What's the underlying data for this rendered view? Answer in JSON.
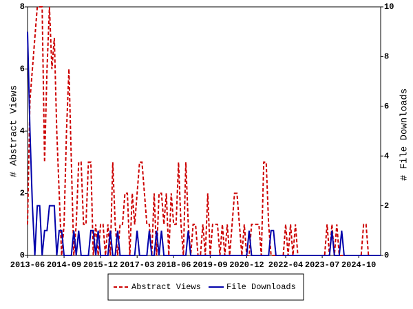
{
  "chart_data": {
    "type": "line",
    "categories": [
      "2013-06",
      null,
      null,
      null,
      null,
      null,
      null,
      null,
      null,
      null,
      null,
      null,
      null,
      null,
      null,
      "2014-09",
      null,
      null,
      null,
      null,
      null,
      null,
      null,
      null,
      null,
      null,
      null,
      null,
      null,
      null,
      "2015-12",
      null,
      null,
      null,
      null,
      null,
      null,
      null,
      null,
      null,
      null,
      null,
      null,
      null,
      null,
      "2017-03",
      null,
      null,
      null,
      null,
      null,
      null,
      null,
      null,
      null,
      null,
      null,
      null,
      null,
      null,
      "2018-06",
      null,
      null,
      null,
      null,
      null,
      null,
      null,
      null,
      null,
      null,
      null,
      null,
      null,
      null,
      "2019-09",
      null,
      null,
      null,
      null,
      null,
      null,
      null,
      null,
      null,
      null,
      null,
      null,
      null,
      null,
      "2020-12",
      null,
      null,
      null,
      null,
      null,
      null,
      null,
      null,
      null,
      null,
      null,
      null,
      null,
      null,
      null,
      "2022-04",
      null,
      null,
      null,
      null,
      null,
      null,
      null,
      null,
      null,
      null,
      null,
      null,
      null,
      null,
      "2023-07",
      null,
      null,
      null,
      null,
      null,
      null,
      null,
      null,
      null,
      null,
      null,
      null,
      null,
      null,
      "2024-10",
      null,
      null,
      null,
      null,
      null,
      null,
      null,
      null,
      null
    ],
    "series": [
      {
        "name": "Abstract Views",
        "color": "#cc0000",
        "dash": true,
        "axis": "y",
        "values": [
          1,
          5,
          6,
          7,
          8,
          8,
          8,
          3,
          6,
          8,
          6,
          7,
          4,
          2,
          0,
          1,
          4,
          6,
          3,
          0,
          1,
          3,
          3,
          1,
          1,
          3,
          3,
          0,
          1,
          0,
          1,
          1,
          0,
          1,
          0,
          3,
          1,
          0,
          1,
          1,
          2,
          2,
          0,
          2,
          1,
          2,
          3,
          3,
          2,
          1,
          1,
          0,
          2,
          0,
          2,
          2,
          1,
          2,
          0,
          2,
          1,
          1,
          3,
          1,
          0,
          3,
          1,
          0,
          1,
          1,
          0,
          0,
          1,
          0,
          2,
          0,
          1,
          1,
          1,
          0,
          1,
          0,
          1,
          0,
          1,
          2,
          2,
          1,
          0,
          1,
          0,
          0,
          1,
          1,
          1,
          1,
          0,
          3,
          3,
          1,
          0,
          0,
          0,
          0,
          0,
          0,
          1,
          0,
          1,
          0,
          1,
          0,
          0,
          0,
          0,
          0,
          0,
          0,
          0,
          0,
          0,
          0,
          0,
          1,
          0,
          1,
          0,
          1,
          0,
          0,
          0,
          0,
          0,
          0,
          0,
          0,
          0,
          0,
          1,
          1,
          0,
          0,
          0,
          0,
          0,
          0
        ]
      },
      {
        "name": "File Downloads",
        "color": "#0000aa",
        "dash": false,
        "axis": "y2",
        "values": [
          9,
          5,
          2,
          0,
          2,
          2,
          0,
          1,
          1,
          2,
          2,
          2,
          0,
          1,
          1,
          0,
          0,
          0,
          0,
          1,
          0,
          1,
          0,
          0,
          0,
          0,
          1,
          1,
          0,
          1,
          0,
          0,
          0,
          0,
          1,
          0,
          0,
          1,
          0,
          0,
          0,
          0,
          0,
          0,
          0,
          1,
          0,
          0,
          0,
          0,
          1,
          0,
          0,
          1,
          0,
          1,
          0,
          0,
          0,
          0,
          0,
          0,
          0,
          0,
          0,
          0,
          1,
          0,
          0,
          0,
          0,
          0,
          0,
          0,
          0,
          0,
          0,
          0,
          0,
          0,
          0,
          0,
          0,
          0,
          0,
          0,
          0,
          0,
          0,
          0,
          0,
          1,
          0,
          0,
          0,
          0,
          0,
          0,
          0,
          0,
          1,
          1,
          0,
          0,
          0,
          0,
          0,
          0,
          0,
          0,
          0,
          0,
          0,
          0,
          0,
          0,
          0,
          0,
          0,
          0,
          0,
          0,
          0,
          0,
          0,
          1,
          0,
          0,
          0,
          1,
          0,
          0,
          0,
          0,
          0,
          0,
          0,
          0,
          0,
          0,
          0,
          0,
          0,
          0,
          0,
          0
        ]
      }
    ],
    "ylabel": "# Abstract Views",
    "y2label": "# File Downloads",
    "ylim": [
      0,
      8
    ],
    "yticks": [
      0,
      2,
      4,
      6,
      8
    ],
    "y2lim": [
      0,
      10
    ],
    "y2ticks": [
      0,
      2,
      4,
      6,
      8,
      10
    ],
    "legend": "bottom"
  }
}
